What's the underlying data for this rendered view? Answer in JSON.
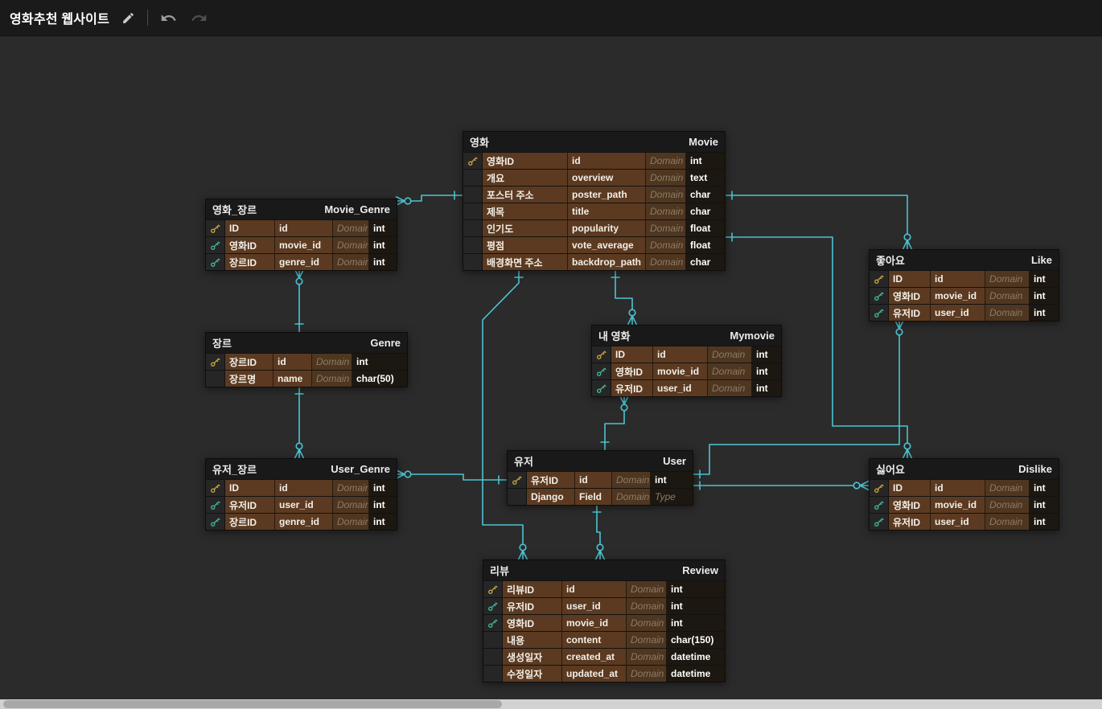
{
  "header": {
    "title": "영화추천 웹사이트",
    "icons": [
      "pencil-icon",
      "undo-icon",
      "redo-icon"
    ]
  },
  "placeholders": {
    "domain": "Domain",
    "type": "Type"
  },
  "colors": {
    "accent": "#4cc3d2",
    "row_highlight": "#5b3a21",
    "pk_key": "#c9a23f",
    "fk_key": "#43b39c",
    "canvas": "#2b2b2b",
    "topbar": "#1a1a1a"
  },
  "tables": [
    {
      "id": "movie",
      "logical_name": "영화",
      "physical_name": "Movie",
      "columns": [
        {
          "key": "pk",
          "logical": "영화ID",
          "physical": "id",
          "type": "int"
        },
        {
          "key": "",
          "logical": "개요",
          "physical": "overview",
          "type": "text"
        },
        {
          "key": "",
          "logical": "포스터 주소",
          "physical": "poster_path",
          "type": "char"
        },
        {
          "key": "",
          "logical": "제목",
          "physical": "title",
          "type": "char"
        },
        {
          "key": "",
          "logical": "인기도",
          "physical": "popularity",
          "type": "float"
        },
        {
          "key": "",
          "logical": "평점",
          "physical": "vote_average",
          "type": "float"
        },
        {
          "key": "",
          "logical": "배경화면 주소",
          "physical": "backdrop_path",
          "type": "char"
        }
      ]
    },
    {
      "id": "movie_genre",
      "logical_name": "영화_장르",
      "physical_name": "Movie_Genre",
      "columns": [
        {
          "key": "pk",
          "logical": "ID",
          "physical": "id",
          "type": "int"
        },
        {
          "key": "fk",
          "logical": "영화ID",
          "physical": "movie_id",
          "type": "int"
        },
        {
          "key": "fk",
          "logical": "장르ID",
          "physical": "genre_id",
          "type": "int"
        }
      ]
    },
    {
      "id": "genre",
      "logical_name": "장르",
      "physical_name": "Genre",
      "columns": [
        {
          "key": "pk",
          "logical": "장르ID",
          "physical": "id",
          "type": "int"
        },
        {
          "key": "",
          "logical": "장르명",
          "physical": "name",
          "type": "char(50)"
        }
      ]
    },
    {
      "id": "like",
      "logical_name": "좋아요",
      "physical_name": "Like",
      "columns": [
        {
          "key": "pk",
          "logical": "ID",
          "physical": "id",
          "type": "int"
        },
        {
          "key": "fk",
          "logical": "영화ID",
          "physical": "movie_id",
          "type": "int"
        },
        {
          "key": "fk",
          "logical": "유저ID",
          "physical": "user_id",
          "type": "int"
        }
      ]
    },
    {
      "id": "mymovie",
      "logical_name": "내 영화",
      "physical_name": "Mymovie",
      "columns": [
        {
          "key": "pk",
          "logical": "ID",
          "physical": "id",
          "type": "int"
        },
        {
          "key": "fk",
          "logical": "영화ID",
          "physical": "movie_id",
          "type": "int"
        },
        {
          "key": "fk",
          "logical": "유저ID",
          "physical": "user_id",
          "type": "int"
        }
      ]
    },
    {
      "id": "user",
      "logical_name": "유저",
      "physical_name": "User",
      "columns": [
        {
          "key": "pk",
          "logical": "유저ID",
          "physical": "id",
          "type": "int"
        },
        {
          "key": "",
          "logical": "Django",
          "physical": "Field",
          "type": "",
          "type_placeholder": true
        }
      ]
    },
    {
      "id": "user_genre",
      "logical_name": "유저_장르",
      "physical_name": "User_Genre",
      "columns": [
        {
          "key": "pk",
          "logical": "ID",
          "physical": "id",
          "type": "int"
        },
        {
          "key": "fk",
          "logical": "유저ID",
          "physical": "user_id",
          "type": "int"
        },
        {
          "key": "fk",
          "logical": "장르ID",
          "physical": "genre_id",
          "type": "int"
        }
      ]
    },
    {
      "id": "dislike",
      "logical_name": "싫어요",
      "physical_name": "Dislike",
      "columns": [
        {
          "key": "pk",
          "logical": "ID",
          "physical": "id",
          "type": "int"
        },
        {
          "key": "fk",
          "logical": "영화ID",
          "physical": "movie_id",
          "type": "int"
        },
        {
          "key": "fk",
          "logical": "유저ID",
          "physical": "user_id",
          "type": "int"
        }
      ]
    },
    {
      "id": "review",
      "logical_name": "리뷰",
      "physical_name": "Review",
      "columns": [
        {
          "key": "pk",
          "logical": "리뷰ID",
          "physical": "id",
          "type": "int"
        },
        {
          "key": "fk",
          "logical": "유저ID",
          "physical": "user_id",
          "type": "int"
        },
        {
          "key": "fk",
          "logical": "영화ID",
          "physical": "movie_id",
          "type": "int"
        },
        {
          "key": "",
          "logical": "내용",
          "physical": "content",
          "type": "char(150)"
        },
        {
          "key": "",
          "logical": "생성일자",
          "physical": "created_at",
          "type": "datetime"
        },
        {
          "key": "",
          "logical": "수정일자",
          "physical": "updated_at",
          "type": "datetime"
        }
      ]
    }
  ],
  "relationships": [
    {
      "from": "Movie",
      "to": "Movie_Genre",
      "type": "one-to-zero-or-many"
    },
    {
      "from": "Genre",
      "to": "Movie_Genre",
      "type": "one-to-zero-or-many"
    },
    {
      "from": "Genre",
      "to": "User_Genre",
      "type": "one-to-zero-or-many"
    },
    {
      "from": "User",
      "to": "User_Genre",
      "type": "one-to-zero-or-many"
    },
    {
      "from": "Movie",
      "to": "Mymovie",
      "type": "one-to-zero-or-many"
    },
    {
      "from": "User",
      "to": "Mymovie",
      "type": "one-to-zero-or-many"
    },
    {
      "from": "User",
      "to": "Review",
      "type": "one-to-zero-or-many"
    },
    {
      "from": "Movie",
      "to": "Review",
      "type": "one-to-zero-or-many"
    },
    {
      "from": "Movie",
      "to": "Like",
      "type": "one-to-zero-or-many"
    },
    {
      "from": "User",
      "to": "Like",
      "type": "one-to-zero-or-many"
    },
    {
      "from": "Movie",
      "to": "Dislike",
      "type": "one-to-zero-or-many"
    },
    {
      "from": "User",
      "to": "Dislike",
      "type": "one-to-zero-or-many"
    }
  ]
}
